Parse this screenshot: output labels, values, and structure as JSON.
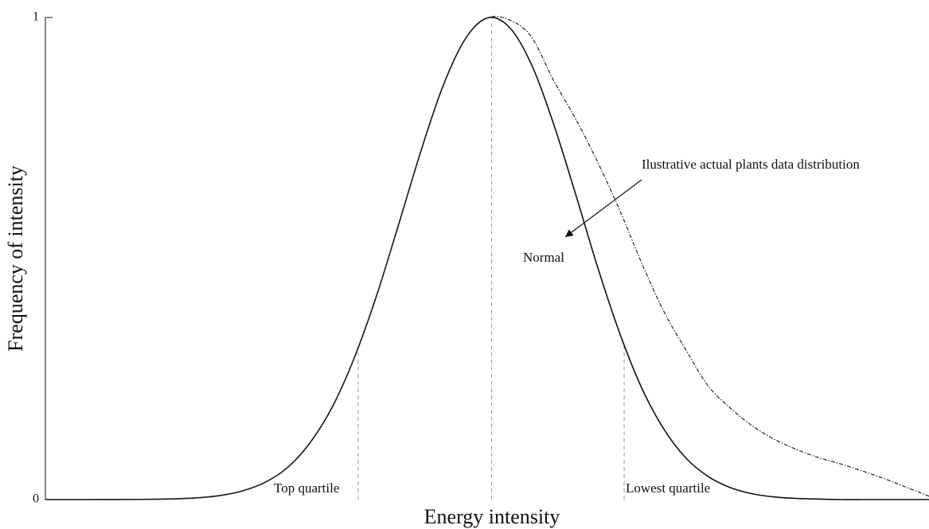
{
  "chart_data": {
    "type": "line",
    "xlabel": "Energy intensity",
    "ylabel": "Frequency of intensity",
    "x": [
      0,
      2.5,
      5,
      7.5,
      10,
      12.5,
      15,
      17.5,
      20,
      22.5,
      25,
      27.5,
      30,
      32.5,
      35,
      37.5,
      40,
      42.5,
      45,
      47.5,
      50,
      52.5,
      55,
      57.5,
      60,
      62.5,
      65,
      67.5,
      70,
      72.5,
      75,
      77.5,
      80,
      82.5,
      85,
      87.5,
      90,
      92.5,
      95,
      97.5,
      100
    ],
    "series": [
      {
        "color": "#111111",
        "style": "solid",
        "values": [
          0,
          0,
          0,
          0.0001,
          0.0002,
          0.0007,
          0.0017,
          0.004,
          0.009,
          0.019,
          0.037,
          0.068,
          0.119,
          0.193,
          0.296,
          0.424,
          0.572,
          0.723,
          0.858,
          0.955,
          0.999,
          0.98,
          0.903,
          0.78,
          0.634,
          0.482,
          0.345,
          0.231,
          0.146,
          0.086,
          0.048,
          0.025,
          0.012,
          0.0055,
          0.0024,
          0.001,
          0,
          0,
          0,
          0,
          0
        ]
      },
      {
        "color": "#222222",
        "style": "dashdot",
        "values": [
          0,
          0,
          0,
          0.0001,
          0.0002,
          0.0007,
          0.0017,
          0.004,
          0.009,
          0.019,
          0.037,
          0.068,
          0.119,
          0.193,
          0.296,
          0.424,
          0.572,
          0.723,
          0.858,
          0.955,
          0.999,
          0.995,
          0.96,
          0.87,
          0.79,
          0.7,
          0.6,
          0.49,
          0.39,
          0.31,
          0.236,
          0.19,
          0.153,
          0.125,
          0.104,
          0.087,
          0.074,
          0.059,
          0.043,
          0.025,
          0.007
        ]
      }
    ],
    "vlines": [
      35.4,
      50.5,
      65.5
    ],
    "annotations": [
      "Ilustrative actual plants data distribution",
      "Normal",
      "Top quartile",
      "Lowest quartile"
    ],
    "xlim": [
      0,
      100
    ],
    "ylim": [
      0,
      1
    ],
    "yticks": [
      0,
      1
    ]
  }
}
